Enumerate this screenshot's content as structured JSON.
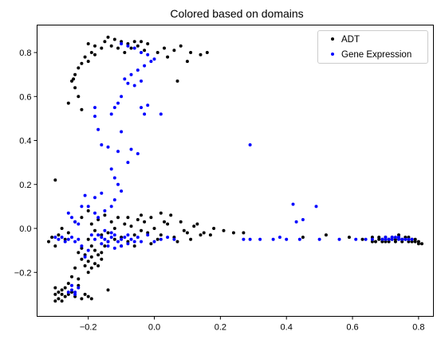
{
  "chart_data": {
    "type": "scatter",
    "title": "Colored based on domains",
    "xlabel": "",
    "ylabel": "",
    "xlim": [
      -0.355,
      0.845
    ],
    "ylim": [
      -0.4,
      0.925
    ],
    "xticks": [
      -0.2,
      0.0,
      0.2,
      0.4,
      0.6,
      0.8
    ],
    "yticks": [
      -0.2,
      0.0,
      0.2,
      0.4,
      0.6,
      0.8
    ],
    "xtick_labels": [
      "−0.2",
      "0.0",
      "0.2",
      "0.4",
      "0.6",
      "0.8"
    ],
    "ytick_labels": [
      "−0.2",
      "0.0",
      "0.2",
      "0.4",
      "0.6",
      "0.8"
    ],
    "grid": false,
    "legend_position": "upper right",
    "series": [
      {
        "name": "ADT",
        "color": "#000000",
        "points": [
          [
            -0.2,
            0.84
          ],
          [
            -0.18,
            0.83
          ],
          [
            -0.15,
            0.85
          ],
          [
            -0.14,
            0.87
          ],
          [
            -0.12,
            0.86
          ],
          [
            -0.1,
            0.85
          ],
          [
            -0.08,
            0.84
          ],
          [
            -0.06,
            0.85
          ],
          [
            -0.04,
            0.85
          ],
          [
            -0.02,
            0.84
          ],
          [
            -0.16,
            0.82
          ],
          [
            -0.13,
            0.83
          ],
          [
            -0.11,
            0.82
          ],
          [
            -0.09,
            0.8
          ],
          [
            -0.07,
            0.82
          ],
          [
            -0.05,
            0.83
          ],
          [
            -0.03,
            0.81
          ],
          [
            0.01,
            0.8
          ],
          [
            0.03,
            0.82
          ],
          [
            0.06,
            0.81
          ],
          [
            0.08,
            0.83
          ],
          [
            0.11,
            0.8
          ],
          [
            0.14,
            0.79
          ],
          [
            0.16,
            0.8
          ],
          [
            0.1,
            0.76
          ],
          [
            0.04,
            0.78
          ],
          [
            0.07,
            0.67
          ],
          [
            -0.19,
            0.8
          ],
          [
            -0.21,
            0.78
          ],
          [
            -0.22,
            0.75
          ],
          [
            -0.23,
            0.73
          ],
          [
            -0.24,
            0.7
          ],
          [
            -0.245,
            0.68
          ],
          [
            -0.25,
            0.67
          ],
          [
            -0.24,
            0.64
          ],
          [
            -0.23,
            0.6
          ],
          [
            -0.26,
            0.57
          ],
          [
            -0.22,
            0.54
          ],
          [
            -0.2,
            0.76
          ],
          [
            -0.18,
            0.79
          ],
          [
            -0.3,
            0.22
          ],
          [
            -0.31,
            -0.04
          ],
          [
            -0.32,
            -0.06
          ],
          [
            -0.3,
            -0.08
          ],
          [
            -0.29,
            -0.03
          ],
          [
            -0.27,
            -0.05
          ],
          [
            -0.28,
            0.0
          ],
          [
            -0.26,
            -0.02
          ],
          [
            -0.24,
            0.03
          ],
          [
            -0.22,
            0.05
          ],
          [
            -0.2,
            0.08
          ],
          [
            -0.19,
            0.02
          ],
          [
            -0.18,
            -0.01
          ],
          [
            -0.17,
            0.04
          ],
          [
            -0.16,
            -0.03
          ],
          [
            -0.15,
            0.06
          ],
          [
            -0.14,
            -0.02
          ],
          [
            -0.13,
            0.03
          ],
          [
            -0.12,
            0.0
          ],
          [
            -0.11,
            0.05
          ],
          [
            -0.1,
            -0.04
          ],
          [
            -0.09,
            0.02
          ],
          [
            -0.08,
            -0.06
          ],
          [
            -0.07,
            0.01
          ],
          [
            -0.06,
            -0.03
          ],
          [
            -0.05,
            0.04
          ],
          [
            -0.04,
            -0.01
          ],
          [
            -0.03,
            0.03
          ],
          [
            -0.02,
            -0.02
          ],
          [
            -0.01,
            0.05
          ],
          [
            0.0,
            0.0
          ],
          [
            0.02,
            -0.03
          ],
          [
            0.04,
            0.02
          ],
          [
            0.06,
            -0.04
          ],
          [
            0.08,
            0.03
          ],
          [
            0.1,
            -0.02
          ],
          [
            0.12,
            0.01
          ],
          [
            0.14,
            -0.03
          ],
          [
            0.05,
            0.06
          ],
          [
            0.07,
            -0.06
          ],
          [
            0.09,
            -0.01
          ],
          [
            0.11,
            -0.05
          ],
          [
            0.13,
            0.02
          ],
          [
            0.15,
            -0.02
          ],
          [
            0.17,
            -0.03
          ],
          [
            0.21,
            -0.01
          ],
          [
            0.18,
            0.0
          ],
          [
            0.02,
            0.07
          ],
          [
            -0.2,
            -0.05
          ],
          [
            -0.19,
            -0.08
          ],
          [
            -0.18,
            -0.1
          ],
          [
            -0.17,
            -0.12
          ],
          [
            -0.16,
            -0.14
          ],
          [
            -0.19,
            -0.13
          ],
          [
            -0.2,
            -0.15
          ],
          [
            -0.21,
            -0.12
          ],
          [
            -0.22,
            -0.09
          ],
          [
            -0.18,
            -0.16
          ],
          [
            -0.17,
            -0.17
          ],
          [
            -0.16,
            -0.11
          ],
          [
            -0.15,
            -0.08
          ],
          [
            -0.14,
            -0.06
          ],
          [
            -0.21,
            -0.17
          ],
          [
            -0.22,
            -0.14
          ],
          [
            -0.23,
            -0.11
          ],
          [
            -0.2,
            -0.2
          ],
          [
            -0.19,
            -0.18
          ],
          [
            -0.24,
            -0.18
          ],
          [
            -0.23,
            -0.23
          ],
          [
            -0.25,
            -0.22
          ],
          [
            -0.26,
            -0.25
          ],
          [
            -0.27,
            -0.27
          ],
          [
            -0.28,
            -0.28
          ],
          [
            -0.29,
            -0.29
          ],
          [
            -0.3,
            -0.3
          ],
          [
            -0.3,
            -0.27
          ],
          [
            -0.29,
            -0.32
          ],
          [
            -0.28,
            -0.33
          ],
          [
            -0.27,
            -0.31
          ],
          [
            -0.26,
            -0.3
          ],
          [
            -0.25,
            -0.29
          ],
          [
            -0.24,
            -0.31
          ],
          [
            -0.3,
            -0.33
          ],
          [
            -0.28,
            -0.3
          ],
          [
            -0.21,
            -0.3
          ],
          [
            -0.2,
            -0.31
          ],
          [
            -0.19,
            -0.32
          ],
          [
            -0.14,
            -0.28
          ],
          [
            -0.22,
            -0.32
          ],
          [
            -0.23,
            -0.26
          ],
          [
            -0.12,
            -0.05
          ],
          [
            -0.1,
            -0.08
          ],
          [
            -0.08,
            0.05
          ],
          [
            -0.06,
            -0.08
          ],
          [
            -0.04,
            0.06
          ],
          [
            0.01,
            -0.05
          ],
          [
            0.03,
            0.03
          ],
          [
            -0.01,
            -0.07
          ],
          [
            0.66,
            -0.04
          ],
          [
            0.68,
            -0.05
          ],
          [
            0.7,
            -0.04
          ],
          [
            0.72,
            -0.05
          ],
          [
            0.74,
            -0.04
          ],
          [
            0.76,
            -0.05
          ],
          [
            0.78,
            -0.06
          ],
          [
            0.8,
            -0.06
          ],
          [
            0.79,
            -0.05
          ],
          [
            0.77,
            -0.04
          ],
          [
            0.75,
            -0.06
          ],
          [
            0.73,
            -0.06
          ],
          [
            0.71,
            -0.06
          ],
          [
            0.69,
            -0.06
          ],
          [
            0.67,
            -0.06
          ],
          [
            0.81,
            -0.07
          ],
          [
            0.8,
            -0.07
          ],
          [
            0.78,
            -0.05
          ],
          [
            0.76,
            -0.04
          ],
          [
            0.74,
            -0.03
          ],
          [
            0.72,
            -0.04
          ],
          [
            0.7,
            -0.06
          ],
          [
            0.75,
            -0.05
          ],
          [
            0.79,
            -0.06
          ],
          [
            0.77,
            -0.06
          ],
          [
            0.73,
            -0.05
          ],
          [
            0.71,
            -0.05
          ],
          [
            0.69,
            -0.05
          ],
          [
            0.68,
            -0.04
          ],
          [
            0.66,
            -0.06
          ],
          [
            0.24,
            -0.02
          ],
          [
            0.27,
            -0.02
          ],
          [
            0.45,
            -0.04
          ],
          [
            0.52,
            -0.03
          ],
          [
            0.59,
            -0.04
          ],
          [
            0.63,
            -0.05
          ]
        ]
      },
      {
        "name": "Gene Expression",
        "color": "#0000ff",
        "points": [
          [
            -0.1,
            0.84
          ],
          [
            -0.08,
            0.83
          ],
          [
            -0.06,
            0.82
          ],
          [
            -0.04,
            0.8
          ],
          [
            -0.02,
            0.79
          ],
          [
            0.0,
            0.77
          ],
          [
            -0.01,
            0.76
          ],
          [
            -0.03,
            0.74
          ],
          [
            -0.05,
            0.72
          ],
          [
            -0.07,
            0.7
          ],
          [
            -0.09,
            0.68
          ],
          [
            -0.08,
            0.66
          ],
          [
            -0.06,
            0.65
          ],
          [
            -0.04,
            0.67
          ],
          [
            -0.1,
            0.6
          ],
          [
            -0.11,
            0.57
          ],
          [
            -0.12,
            0.55
          ],
          [
            -0.13,
            0.52
          ],
          [
            -0.04,
            0.55
          ],
          [
            -0.03,
            0.52
          ],
          [
            -0.02,
            0.56
          ],
          [
            0.02,
            0.52
          ],
          [
            -0.18,
            0.55
          ],
          [
            -0.18,
            0.51
          ],
          [
            -0.17,
            0.45
          ],
          [
            -0.16,
            0.38
          ],
          [
            -0.1,
            0.44
          ],
          [
            -0.14,
            0.37
          ],
          [
            -0.11,
            0.35
          ],
          [
            -0.07,
            0.36
          ],
          [
            -0.05,
            0.34
          ],
          [
            -0.08,
            0.3
          ],
          [
            -0.12,
            0.23
          ],
          [
            -0.13,
            0.27
          ],
          [
            -0.11,
            0.2
          ],
          [
            -0.1,
            0.17
          ],
          [
            -0.12,
            0.13
          ],
          [
            -0.16,
            0.16
          ],
          [
            -0.18,
            0.14
          ],
          [
            -0.2,
            0.1
          ],
          [
            -0.18,
            0.07
          ],
          [
            -0.17,
            0.05
          ],
          [
            -0.15,
            0.08
          ],
          [
            -0.13,
            0.1
          ],
          [
            -0.21,
            0.15
          ],
          [
            -0.22,
            0.1
          ],
          [
            -0.26,
            0.07
          ],
          [
            -0.24,
            0.03
          ],
          [
            -0.25,
            0.05
          ],
          [
            -0.23,
            0.02
          ],
          [
            0.29,
            0.38
          ],
          [
            0.42,
            0.11
          ],
          [
            0.49,
            0.1
          ],
          [
            0.45,
            0.04
          ],
          [
            0.43,
            0.03
          ],
          [
            -0.3,
            -0.04
          ],
          [
            -0.29,
            -0.05
          ],
          [
            -0.28,
            -0.04
          ],
          [
            -0.27,
            -0.06
          ],
          [
            -0.26,
            -0.05
          ],
          [
            -0.25,
            -0.04
          ],
          [
            -0.24,
            -0.06
          ],
          [
            -0.23,
            -0.05
          ],
          [
            -0.16,
            -0.04
          ],
          [
            -0.15,
            -0.05
          ],
          [
            -0.14,
            -0.06
          ],
          [
            -0.13,
            -0.04
          ],
          [
            -0.12,
            -0.03
          ],
          [
            -0.11,
            -0.06
          ],
          [
            -0.1,
            -0.05
          ],
          [
            -0.09,
            -0.04
          ],
          [
            -0.08,
            -0.03
          ],
          [
            -0.07,
            -0.05
          ],
          [
            -0.06,
            -0.06
          ],
          [
            -0.16,
            -0.07
          ],
          [
            -0.14,
            -0.08
          ],
          [
            -0.12,
            -0.09
          ],
          [
            -0.1,
            -0.08
          ],
          [
            -0.13,
            -0.02
          ],
          [
            -0.15,
            -0.01
          ],
          [
            -0.17,
            -0.03
          ],
          [
            -0.18,
            -0.05
          ],
          [
            -0.08,
            -0.07
          ],
          [
            -0.05,
            -0.04
          ],
          [
            -0.04,
            -0.06
          ],
          [
            0.02,
            -0.05
          ],
          [
            0.04,
            -0.04
          ],
          [
            0.06,
            -0.05
          ],
          [
            -0.02,
            -0.03
          ],
          [
            0.0,
            -0.06
          ],
          [
            -0.2,
            -0.1
          ],
          [
            -0.21,
            -0.13
          ],
          [
            -0.22,
            -0.08
          ],
          [
            -0.19,
            -0.03
          ],
          [
            -0.25,
            -0.28
          ],
          [
            -0.24,
            -0.29
          ],
          [
            -0.23,
            -0.27
          ],
          [
            -0.26,
            -0.29
          ],
          [
            -0.24,
            -0.3
          ],
          [
            -0.25,
            -0.26
          ],
          [
            0.27,
            -0.05
          ],
          [
            0.29,
            -0.05
          ],
          [
            0.32,
            -0.05
          ],
          [
            0.36,
            -0.05
          ],
          [
            0.38,
            -0.04
          ],
          [
            0.4,
            -0.05
          ],
          [
            0.44,
            -0.05
          ],
          [
            0.5,
            -0.05
          ],
          [
            0.56,
            -0.05
          ],
          [
            0.61,
            -0.05
          ],
          [
            0.64,
            -0.05
          ],
          [
            0.66,
            -0.05
          ],
          [
            0.69,
            -0.05
          ],
          [
            0.7,
            -0.04
          ],
          [
            0.71,
            -0.05
          ],
          [
            0.72,
            -0.05
          ],
          [
            0.73,
            -0.04
          ],
          [
            0.74,
            -0.05
          ],
          [
            0.75,
            -0.05
          ],
          [
            0.76,
            -0.05
          ],
          [
            0.77,
            -0.05
          ],
          [
            0.78,
            -0.05
          ],
          [
            0.72,
            -0.04
          ],
          [
            0.74,
            -0.04
          ],
          [
            0.7,
            -0.05
          ]
        ]
      }
    ]
  }
}
